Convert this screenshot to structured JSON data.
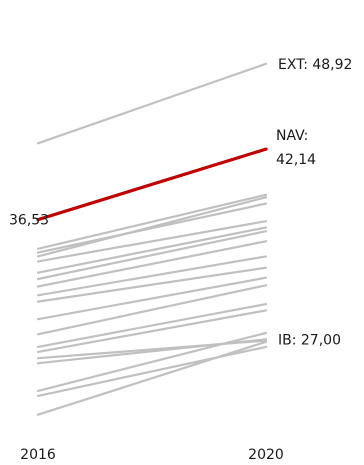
{
  "chart_data": {
    "type": "line",
    "x": [
      "2016",
      "2020"
    ],
    "ylim": [
      17,
      54
    ],
    "grid": false,
    "highlight_color": "#c00000",
    "series_color": "#c0c0c0",
    "series": [
      {
        "name": "EXT",
        "values": [
          42.6,
          48.92
        ],
        "label": "EXT: 48,92"
      },
      {
        "name": "NAV",
        "values": [
          36.53,
          42.14
        ],
        "highlight": true,
        "start_label": "36,53",
        "label_lines": [
          "NAV:",
          "42,14"
        ]
      },
      {
        "values": [
          34.2,
          38.5
        ]
      },
      {
        "values": [
          33.6,
          38.3
        ]
      },
      {
        "values": [
          33.9,
          37.8
        ]
      },
      {
        "values": [
          33.2,
          36.4
        ]
      },
      {
        "values": [
          32.3,
          35.9
        ]
      },
      {
        "values": [
          31.8,
          35.6
        ]
      },
      {
        "values": [
          31.2,
          34.8
        ]
      },
      {
        "values": [
          30.5,
          33.6
        ]
      },
      {
        "values": [
          30.0,
          32.7
        ]
      },
      {
        "values": [
          28.6,
          31.9
        ]
      },
      {
        "values": [
          27.4,
          31.3
        ]
      },
      {
        "values": [
          26.4,
          29.8
        ]
      },
      {
        "values": [
          26.0,
          29.3
        ]
      },
      {
        "values": [
          25.5,
          26.9
        ]
      },
      {
        "name": "IB",
        "values": [
          25.1,
          27.0
        ],
        "label": "IB: 27,00"
      },
      {
        "values": [
          22.9,
          27.5
        ]
      },
      {
        "values": [
          22.5,
          26.4
        ]
      },
      {
        "values": [
          21.0,
          26.8
        ]
      }
    ]
  }
}
